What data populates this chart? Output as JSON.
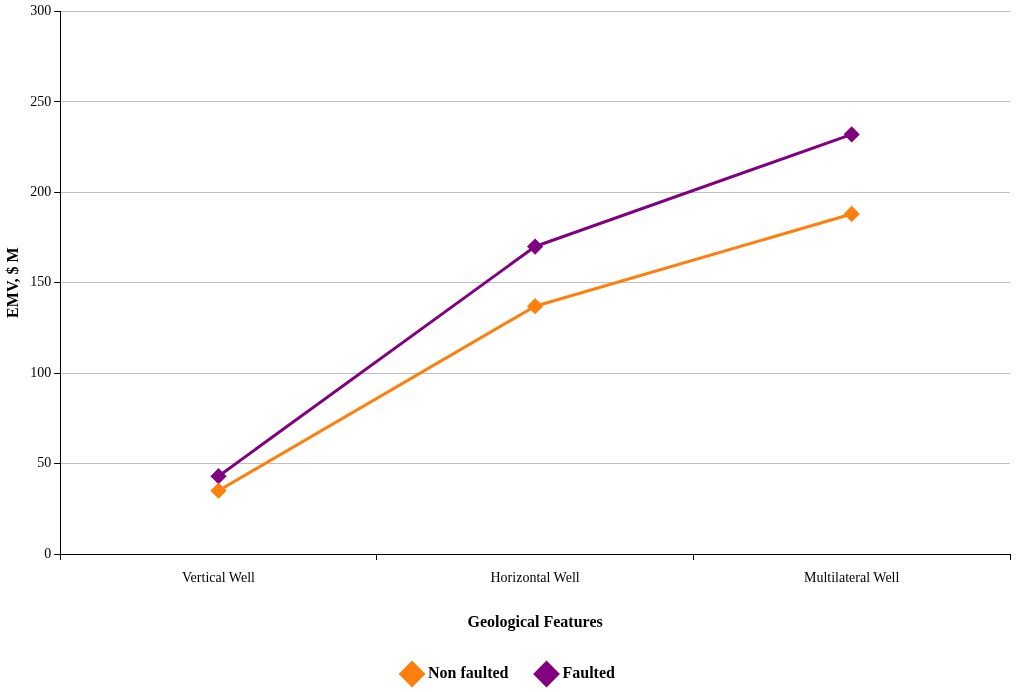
{
  "chart_data": {
    "type": "line",
    "xlabel": "Geological Features",
    "ylabel": "EMV, $ M",
    "categories": [
      "Vertical Well",
      "Horizontal Well",
      "Multilateral Well"
    ],
    "series": [
      {
        "name": "Non faulted",
        "color": "#ff7f0e",
        "values": [
          35,
          137,
          188
        ]
      },
      {
        "name": "Faulted",
        "color": "#800080",
        "values": [
          43,
          170,
          232
        ]
      }
    ],
    "ylim": [
      0,
      300
    ],
    "yticks": [
      0,
      50,
      100,
      150,
      200,
      250,
      300
    ],
    "grid": "y",
    "legend": "bottom",
    "marker": "diamond",
    "line_style": "solid"
  }
}
